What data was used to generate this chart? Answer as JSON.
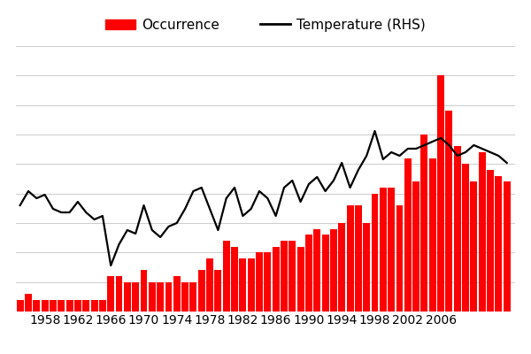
{
  "years": [
    1955,
    1956,
    1957,
    1958,
    1959,
    1960,
    1961,
    1962,
    1963,
    1964,
    1965,
    1966,
    1967,
    1968,
    1969,
    1970,
    1971,
    1972,
    1973,
    1974,
    1975,
    1976,
    1977,
    1978,
    1979,
    1980,
    1981,
    1982,
    1983,
    1984,
    1985,
    1986,
    1987,
    1988,
    1989,
    1990,
    1991,
    1992,
    1993,
    1994,
    1995,
    1996,
    1997,
    1998,
    1999,
    2000,
    2001,
    2002,
    2003,
    2004,
    2005,
    2006,
    2007,
    2008,
    2009,
    2010,
    2011,
    2012,
    2013,
    2014
  ],
  "occurrences": [
    2,
    3,
    2,
    2,
    2,
    2,
    2,
    2,
    2,
    2,
    2,
    6,
    6,
    5,
    5,
    7,
    5,
    5,
    5,
    6,
    5,
    5,
    7,
    9,
    7,
    12,
    11,
    9,
    9,
    10,
    10,
    11,
    12,
    12,
    11,
    13,
    14,
    13,
    14,
    15,
    18,
    18,
    15,
    20,
    21,
    21,
    18,
    26,
    22,
    30,
    26,
    40,
    34,
    28,
    25,
    22,
    27,
    24,
    23,
    22
  ],
  "temperature": [
    15.5,
    15.9,
    15.7,
    15.8,
    15.4,
    15.3,
    15.3,
    15.6,
    15.3,
    15.1,
    15.2,
    13.8,
    14.4,
    14.8,
    14.7,
    15.5,
    14.8,
    14.6,
    14.9,
    15.0,
    15.4,
    15.9,
    16.0,
    15.4,
    14.8,
    15.7,
    16.0,
    15.2,
    15.4,
    15.9,
    15.7,
    15.2,
    16.0,
    16.2,
    15.6,
    16.1,
    16.3,
    15.9,
    16.2,
    16.7,
    16.0,
    16.5,
    16.9,
    17.6,
    16.8,
    17.0,
    16.9,
    17.1,
    17.1,
    17.2,
    17.3,
    17.4,
    17.2,
    16.9,
    17.0,
    17.2,
    17.1,
    17.0,
    16.9,
    16.7
  ],
  "bar_color": "#ff0000",
  "line_color": "#000000",
  "background_color": "#ffffff",
  "grid_color": "#cccccc",
  "occurrence_label": "Occurrence",
  "temperature_label": "Temperature (RHS)",
  "xlim_left": 1954.5,
  "xlim_right": 2015,
  "bar_ylim": [
    0,
    45
  ],
  "temp_ylim": [
    12.5,
    20.0
  ],
  "xtick_years": [
    1958,
    1962,
    1966,
    1970,
    1974,
    1978,
    1982,
    1986,
    1990,
    1994,
    1998,
    2002,
    2006
  ],
  "tick_fontsize": 10,
  "legend_fontsize": 11
}
